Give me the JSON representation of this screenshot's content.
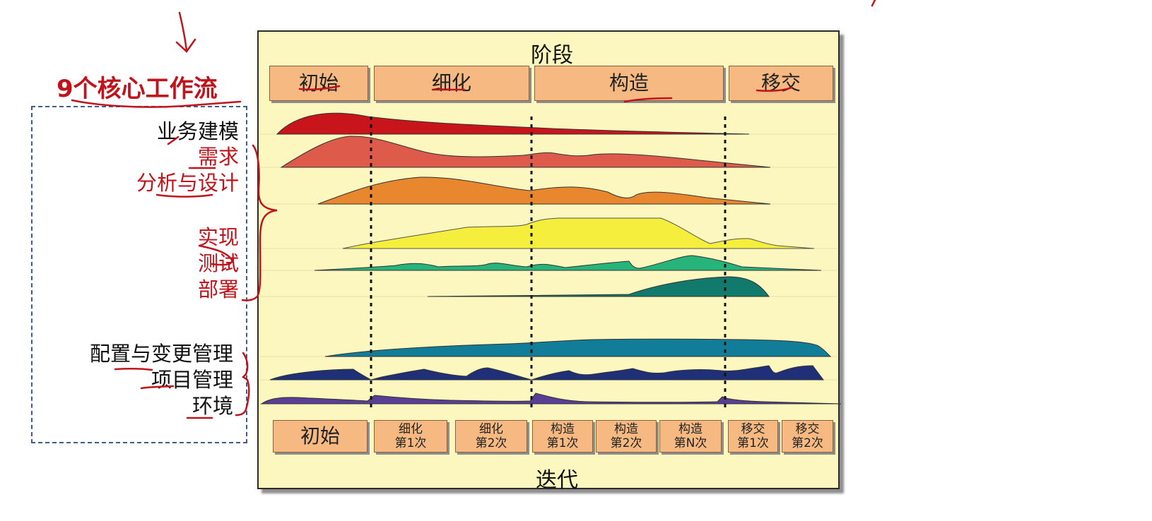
{
  "left_panel": {
    "title": "9个核心工作流",
    "workflows": [
      "业务建模",
      "需求",
      "分析与设计",
      "实现",
      "测试",
      "部署",
      "配置与变更管理",
      "项目管理",
      "环境"
    ]
  },
  "phases_title": "阶段",
  "phases": [
    "初始",
    "细化",
    "构造",
    "移交"
  ],
  "iterations_title": "迭代",
  "iterations": [
    {
      "line1": "初始",
      "line2": ""
    },
    {
      "line1": "细化",
      "line2": "第1次"
    },
    {
      "line1": "细化",
      "line2": "第2次"
    },
    {
      "line1": "构造",
      "line2": "第1次"
    },
    {
      "line1": "构造",
      "line2": "第2次"
    },
    {
      "line1": "构造",
      "line2": "第N次"
    },
    {
      "line1": "移交",
      "line2": "第1次"
    },
    {
      "line1": "移交",
      "line2": "第2次"
    }
  ],
  "colors": {
    "annotation_red": "#c0131b",
    "phase_box": "#f6b982",
    "panel_bg": "#fbf7bf",
    "dashed_border": "#3b5e8c",
    "business_modeling": "#c8141b",
    "requirements": "#de5a4a",
    "analysis_design": "#e9872f",
    "implementation": "#f6ee3c",
    "test": "#27b47a",
    "deployment": "#117a6c",
    "config_change": "#127d98",
    "project_mgmt": "#1f2f78",
    "environment": "#5a3e96"
  }
}
